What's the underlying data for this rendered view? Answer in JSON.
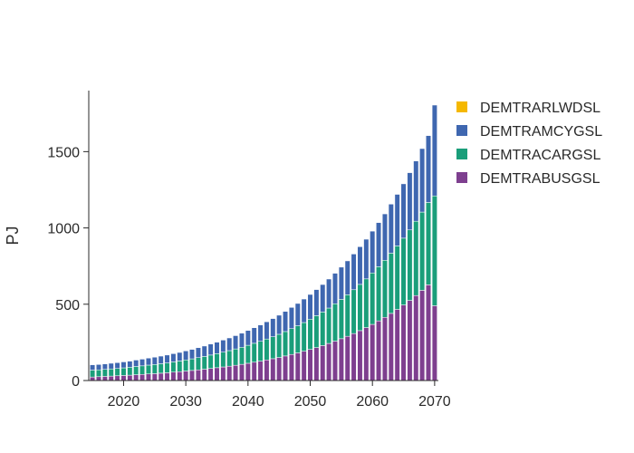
{
  "chart_data": {
    "type": "bar",
    "stacked": true,
    "xlabel": "",
    "ylabel": "PJ",
    "x": [
      2015,
      2016,
      2017,
      2018,
      2019,
      2020,
      2021,
      2022,
      2023,
      2024,
      2025,
      2026,
      2027,
      2028,
      2029,
      2030,
      2031,
      2032,
      2033,
      2034,
      2035,
      2036,
      2037,
      2038,
      2039,
      2040,
      2041,
      2042,
      2043,
      2044,
      2045,
      2046,
      2047,
      2048,
      2049,
      2050,
      2051,
      2052,
      2053,
      2054,
      2055,
      2056,
      2057,
      2058,
      2059,
      2060,
      2061,
      2062,
      2063,
      2064,
      2065,
      2066,
      2067,
      2068,
      2069,
      2070
    ],
    "xticks": [
      2020,
      2030,
      2040,
      2050,
      2060,
      2070
    ],
    "xlim": [
      2014.4,
      2070.6
    ],
    "yticks": [
      0,
      500,
      1000,
      1500
    ],
    "ylim": [
      0,
      1900
    ],
    "legend_position": "top-right",
    "series": [
      {
        "name": "DEMTRABUSGSL",
        "color": "#7e3f8f",
        "values": [
          23,
          25,
          27,
          29,
          31,
          33,
          35,
          38,
          40,
          43,
          45,
          48,
          51,
          55,
          58,
          62,
          66,
          70,
          74,
          79,
          84,
          89,
          94,
          100,
          106,
          113,
          120,
          127,
          135,
          143,
          151,
          161,
          171,
          181,
          192,
          204,
          216,
          229,
          243,
          258,
          274,
          290,
          308,
          327,
          347,
          368,
          391,
          414,
          440,
          466,
          495,
          525,
          557,
          591,
          627,
          490
        ]
      },
      {
        "name": "DEMTRACARGSL",
        "color": "#1a9e7a",
        "values": [
          45,
          45,
          46,
          47,
          48,
          50,
          52,
          54,
          56,
          58,
          60,
          62,
          64,
          67,
          70,
          73,
          76,
          80,
          84,
          88,
          92,
          97,
          102,
          107,
          112,
          118,
          124,
          130,
          137,
          144,
          152,
          160,
          169,
          178,
          188,
          198,
          209,
          220,
          232,
          245,
          258,
          272,
          287,
          303,
          319,
          337,
          355,
          374,
          395,
          416,
          438,
          462,
          487,
          513,
          540,
          720
        ]
      },
      {
        "name": "DEMTRAMCYGSL",
        "color": "#3f67b0",
        "values": [
          35,
          35,
          36,
          37,
          38,
          39,
          40,
          42,
          44,
          46,
          48,
          50,
          52,
          54,
          56,
          59,
          62,
          65,
          68,
          72,
          75,
          79,
          83,
          87,
          92,
          97,
          102,
          107,
          113,
          119,
          125,
          132,
          139,
          146,
          154,
          162,
          171,
          180,
          190,
          200,
          211,
          222,
          234,
          247,
          260,
          274,
          289,
          304,
          321,
          338,
          356,
          375,
          395,
          416,
          438,
          595
        ]
      },
      {
        "name": "DEMTRARLWDSL",
        "color": "#f5b800",
        "values": [
          0,
          0,
          0,
          0,
          0,
          0,
          0,
          0,
          0,
          0,
          0,
          0,
          0,
          0,
          0,
          0,
          0,
          0,
          0,
          0,
          0,
          0,
          0,
          0,
          0,
          0,
          0,
          0,
          0,
          0,
          0,
          0,
          0,
          0,
          0,
          0,
          0,
          0,
          0,
          0,
          0,
          0,
          0,
          0,
          0,
          0,
          0,
          0,
          0,
          0,
          0,
          0,
          0,
          0,
          0,
          0
        ]
      }
    ],
    "legend_order": [
      "DEMTRARLWDSL",
      "DEMTRAMCYGSL",
      "DEMTRACARGSL",
      "DEMTRABUSGSL"
    ]
  }
}
